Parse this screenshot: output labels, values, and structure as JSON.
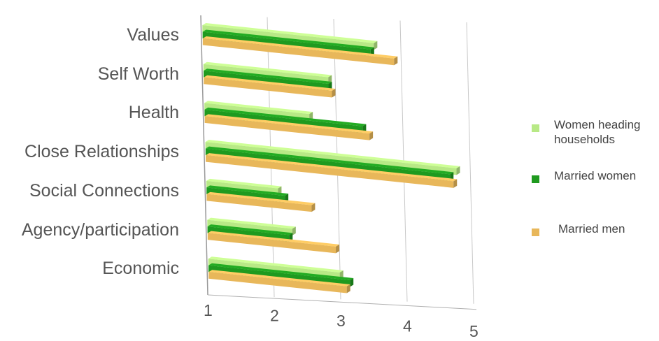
{
  "chart_data": {
    "type": "bar",
    "orientation": "horizontal",
    "style": "3d",
    "categories": [
      "Values",
      "Self Worth",
      "Health",
      "Close Relationships",
      "Social Connections",
      "Agency/participation",
      "Economic"
    ],
    "series": [
      {
        "name": "Women heading households",
        "color": "#b8e986",
        "values": [
          3.6,
          2.9,
          2.6,
          4.8,
          2.1,
          2.3,
          3.0
        ]
      },
      {
        "name": "Married women",
        "color": "#1f9a1f",
        "values": [
          3.55,
          2.9,
          3.4,
          4.7,
          2.2,
          2.25,
          3.15
        ]
      },
      {
        "name": "Married men",
        "color": "#e8b75a",
        "values": [
          3.9,
          2.95,
          3.5,
          4.75,
          2.6,
          2.95,
          3.1
        ]
      }
    ],
    "x_ticks": [
      "1",
      "2",
      "3",
      "4",
      "5"
    ],
    "xlim": [
      1,
      5
    ],
    "grid": true,
    "legend_position": "right"
  }
}
